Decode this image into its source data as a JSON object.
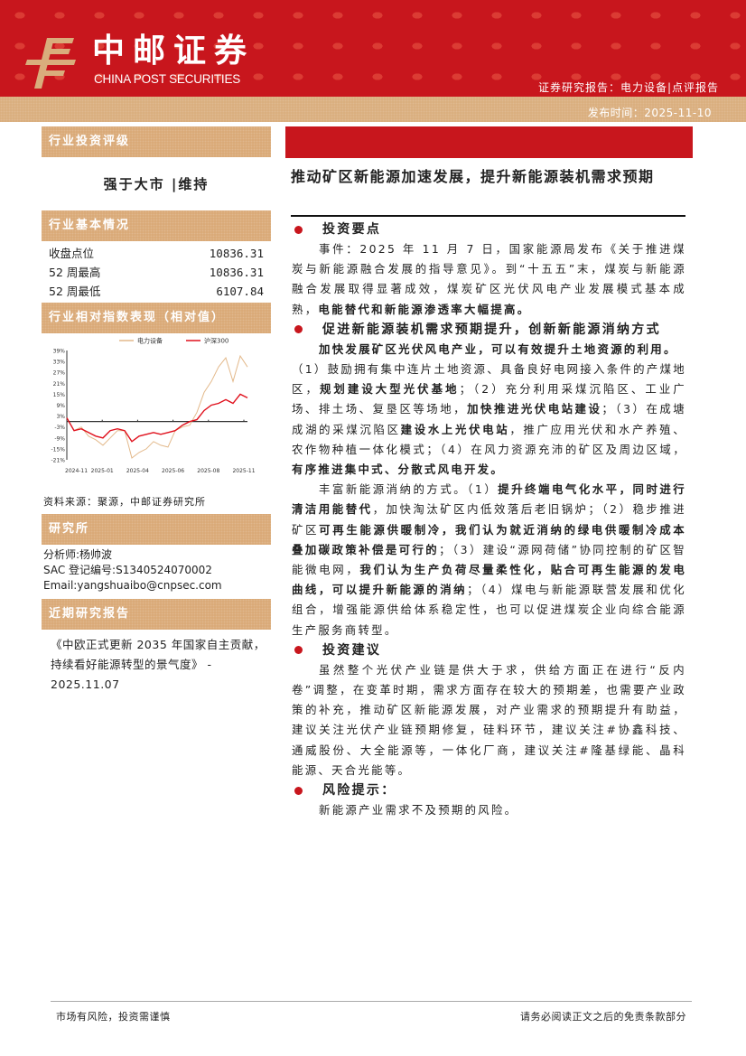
{
  "header": {
    "logo_cn": "中邮证券",
    "logo_en": "CHINA POST SECURITIES",
    "report_type": "证券研究报告：电力设备|点评报告",
    "publish_date": "发布时间：2025-11-10",
    "colors": {
      "brand_red": "#c8161d",
      "tan": "#d9ad7c"
    }
  },
  "left": {
    "rating_heading": "行业投资评级",
    "rating": "强于大市 |维持",
    "basic_heading": "行业基本情况",
    "basic": [
      {
        "label": "收盘点位",
        "value": "10836.31"
      },
      {
        "label": "52 周最高",
        "value": "10836.31"
      },
      {
        "label": "52 周最低",
        "value": "6107.84"
      }
    ],
    "perf_heading": "行业相对指数表现（相对值）",
    "source": "资料来源：聚源，中邮证券研究所",
    "research_heading": "研究所",
    "analyst": "分析师:杨帅波",
    "sac": "SAC 登记编号:S1340524070002",
    "email": "Email:yangshuaibo@cnpsec.com",
    "recent_heading": "近期研究报告",
    "recent_report": "《中欧正式更新 2035 年国家自主贡献，持续看好能源转型的景气度》 - 2025.11.07"
  },
  "chart_data": {
    "type": "line",
    "x_ticks": [
      "2024-11",
      "2025-01",
      "2025-04",
      "2025-06",
      "2025-08",
      "2025-11"
    ],
    "y_ticks": [
      "39%",
      "33%",
      "27%",
      "21%",
      "15%",
      "9%",
      "3%",
      "-3%",
      "-9%",
      "-15%",
      "-21%"
    ],
    "ylim": [
      -21,
      39
    ],
    "y_unit": "%",
    "legend_position": "top",
    "series": [
      {
        "name": "电力设备",
        "color": "#e3b98b",
        "values": [
          2,
          -5,
          -3,
          -8,
          -10,
          -13,
          -9,
          -5,
          -5,
          -20,
          -17,
          -15,
          -11,
          -13,
          -14,
          -5,
          -3,
          -2,
          5,
          16,
          22,
          30,
          35,
          22,
          36,
          30
        ]
      },
      {
        "name": "沪深300",
        "color": "#e0101c",
        "values": [
          2,
          -5,
          -4,
          -6,
          -8,
          -9,
          -5,
          -4,
          -5,
          -11,
          -8,
          -7,
          -6,
          -7,
          -6,
          -5,
          -2,
          0,
          1,
          6,
          9,
          10,
          12,
          10,
          15,
          13
        ]
      }
    ]
  },
  "main": {
    "title": "推动矿区新能源加速发展，提升新能源装机需求预期",
    "sections": [
      {
        "heading": "投资要点",
        "paragraphs": [
          {
            "indent": true,
            "segments": [
              {
                "t": "事件：2025 年 11 月 7 日，国家能源局发布《关于推进煤炭与新能源融合发展的指导意见》。到“十五五”末，煤炭与新能源融合发展取得显著成效，煤炭矿区光伏风电产业发展模式基本成熟，",
                "b": false
              },
              {
                "t": "电能替代和新能源渗透率大幅提高。",
                "b": true
              }
            ]
          }
        ]
      },
      {
        "heading": "促进新能源装机需求预期提升，创新新能源消纳方式",
        "paragraphs": [
          {
            "indent": true,
            "segments": [
              {
                "t": "加快发展矿区光伏风电产业，可以有效提升土地资源的利用。",
                "b": true
              }
            ]
          },
          {
            "indent": false,
            "segments": [
              {
                "t": "（1）鼓励拥有集中连片土地资源、具备良好电网接入条件的产煤地区，",
                "b": false
              },
              {
                "t": "规划建设大型光伏基地",
                "b": true
              },
              {
                "t": "；（2）充分利用采煤沉陷区、工业广场、排土场、复垦区等场地，",
                "b": false
              },
              {
                "t": "加快推进光伏电站建设",
                "b": true
              },
              {
                "t": "；（3）在成塘成湖的采煤沉陷区",
                "b": false
              },
              {
                "t": "建设水上光伏电站",
                "b": true
              },
              {
                "t": "，推广应用光伏和水产养殖、农作物种植一体化模式；（4）在风力资源充沛的矿区及周边区域，",
                "b": false
              },
              {
                "t": "有序推进集中式、分散式风电开发。",
                "b": true
              }
            ]
          },
          {
            "indent": true,
            "segments": [
              {
                "t": "丰富新能源消纳的方式。（1）",
                "b": false
              },
              {
                "t": "提升终端电气化水平，同时进行清洁用能替代",
                "b": true
              },
              {
                "t": "，加快淘汰矿区内低效落后老旧锅炉；（2）稳步推进矿区",
                "b": false
              },
              {
                "t": "可再生能源供暖制冷，我们认为就近消纳的绿电供暖制冷成本叠加碳政策补偿是可行的",
                "b": true
              },
              {
                "t": "；（3）建设“源网荷储”协同控制的矿区智能微电网，",
                "b": false
              },
              {
                "t": "我们认为生产负荷尽量柔性化，贴合可再生能源的发电曲线，可以提升新能源的消纳",
                "b": true
              },
              {
                "t": "；（4）煤电与新能源联营发展和优化组合，增强能源供给体系稳定性，也可以促进煤炭企业向综合能源生产服务商转型。",
                "b": false
              }
            ]
          }
        ]
      },
      {
        "heading": "投资建议",
        "paragraphs": [
          {
            "indent": true,
            "segments": [
              {
                "t": "虽然整个光伏产业链是供大于求，供给方面正在进行“反内卷”调整，在变革时期，需求方面存在较大的预期差，也需要产业政策的补充，推动矿区新能源发展，对产业需求的预期提升有助益，建议关注光伏产业链预期修复，硅料环节，建议关注#协鑫科技、通威股份、大全能源等，一体化厂商，建议关注#隆基绿能、晶科能源、天合光能等。",
                "b": false
              }
            ]
          }
        ]
      },
      {
        "heading": "风险提示：",
        "paragraphs": [
          {
            "indent": true,
            "segments": [
              {
                "t": "新能源产业需求不及预期的风险。",
                "b": false
              }
            ]
          }
        ]
      }
    ]
  },
  "footer": {
    "left": "市场有风险，投资需谨慎",
    "right": "请务必阅读正文之后的免责条款部分"
  }
}
